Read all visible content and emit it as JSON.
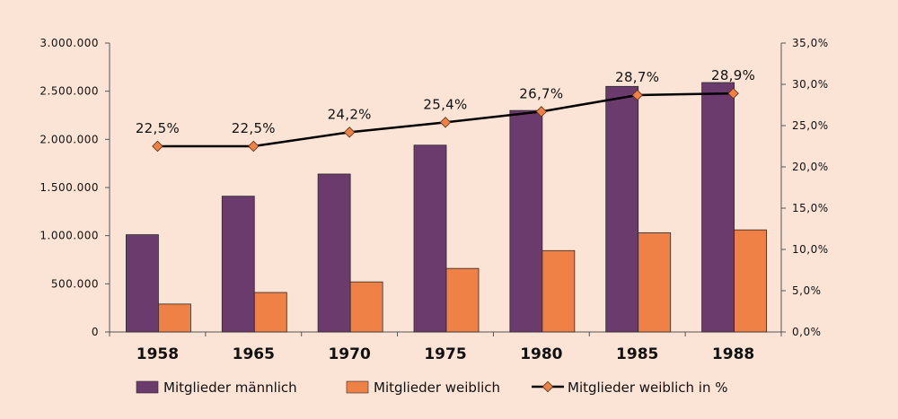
{
  "chart_data": {
    "type": "bar",
    "title": "",
    "categories": [
      "1958",
      "1965",
      "1970",
      "1975",
      "1980",
      "1985",
      "1988"
    ],
    "series": [
      {
        "name": "Mitglieder männlich",
        "type": "bar",
        "axis": "left",
        "color": "#6b3b6e",
        "values": [
          1010000,
          1410000,
          1640000,
          1940000,
          2300000,
          2550000,
          2590000
        ]
      },
      {
        "name": "Mitglieder weiblich",
        "type": "bar",
        "axis": "left",
        "color": "#ef8147",
        "values": [
          290000,
          410000,
          520000,
          660000,
          845000,
          1030000,
          1060000
        ]
      },
      {
        "name": "Mitglieder weiblich in %",
        "type": "line",
        "axis": "right",
        "color": "#000000",
        "marker_color": "#ef8147",
        "values": [
          22.5,
          22.5,
          24.2,
          25.4,
          26.7,
          28.7,
          28.9
        ],
        "labels": [
          "22,5%",
          "22,5%",
          "24,2%",
          "25,4%",
          "26,7%",
          "28,7%",
          "28,9%"
        ]
      }
    ],
    "y_left": {
      "min": 0,
      "max": 3000000,
      "ticks": [
        "0",
        "500.000",
        "1.000.000",
        "1.500.000",
        "2.000.000",
        "2.500.000",
        "3.000.000"
      ]
    },
    "y_right": {
      "min": 0,
      "max": 35,
      "ticks": [
        "0,0%",
        "5,0%",
        "10,0%",
        "15,0%",
        "20,0%",
        "25,0%",
        "30,0%",
        "35,0%"
      ]
    },
    "grid": false,
    "legend_position": "bottom"
  }
}
